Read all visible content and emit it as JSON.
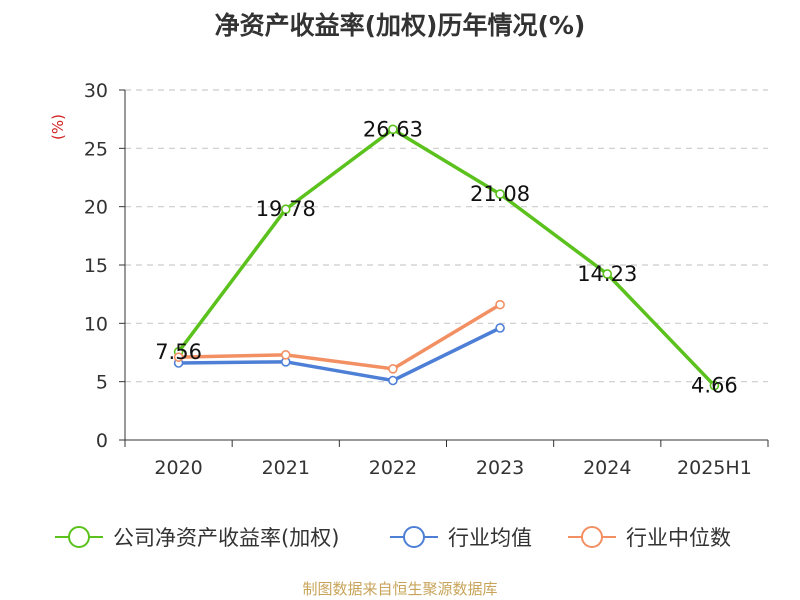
{
  "chart_data": {
    "type": "line",
    "title": "净资产收益率(加权)历年情况(%)",
    "ylabel": "(%)",
    "xlabel": "",
    "categories": [
      "2020",
      "2021",
      "2022",
      "2023",
      "2024",
      "2025H1"
    ],
    "ylim": [
      0,
      30
    ],
    "yticks": [
      0,
      5,
      10,
      15,
      20,
      25,
      30
    ],
    "grid": true,
    "legend_position": "bottom",
    "series": [
      {
        "name": "公司净资产收益率(加权)",
        "color": "#5bc21d",
        "values": [
          7.56,
          19.78,
          26.63,
          21.08,
          14.23,
          4.66
        ],
        "labels": [
          "7.56",
          "19.78",
          "26.63",
          "21.08",
          "14.23",
          "4.66"
        ]
      },
      {
        "name": "行业均值",
        "color": "#4e7fd6",
        "values": [
          6.6,
          6.7,
          5.1,
          9.6,
          null,
          null
        ]
      },
      {
        "name": "行业中位数",
        "color": "#f39063",
        "values": [
          7.1,
          7.3,
          6.1,
          11.6,
          null,
          null
        ]
      }
    ]
  },
  "source_note": "制图数据来自恒生聚源数据库"
}
